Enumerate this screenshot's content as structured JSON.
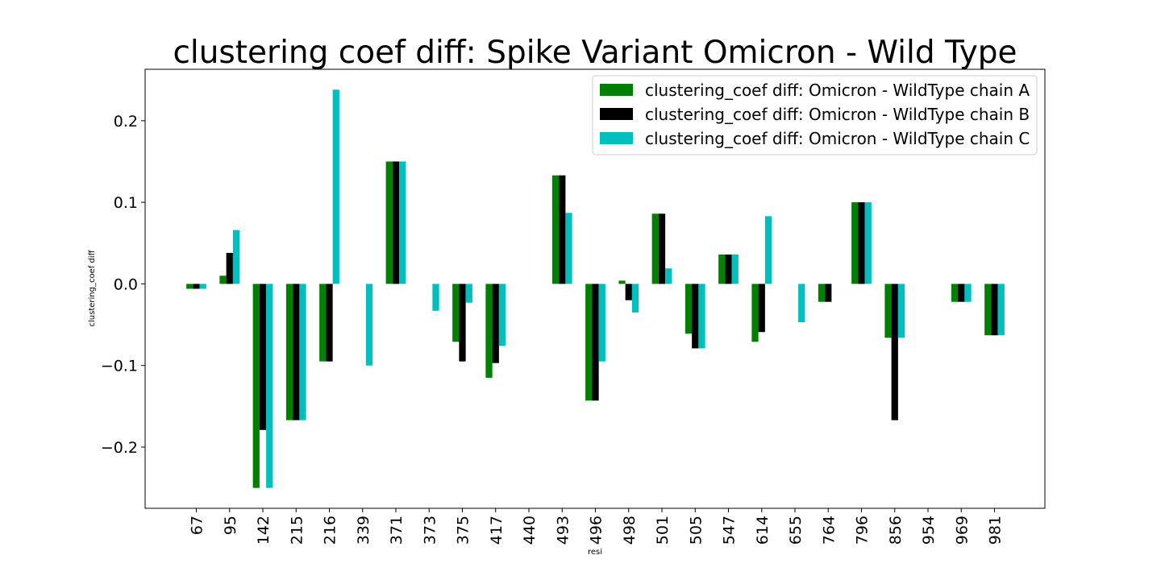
{
  "chart_data": {
    "type": "bar",
    "title": "clustering coef diff: Spike Variant Omicron - Wild Type",
    "xlabel": "resi",
    "ylabel": "clustering_coef diff",
    "categories": [
      "67",
      "95",
      "142",
      "215",
      "216",
      "339",
      "371",
      "373",
      "375",
      "417",
      "440",
      "493",
      "496",
      "498",
      "501",
      "505",
      "547",
      "614",
      "655",
      "764",
      "796",
      "856",
      "954",
      "969",
      "981"
    ],
    "ylim": [
      -0.275,
      0.263
    ],
    "yticks": [
      "0.2",
      "0.1",
      "0.0",
      "−0.1",
      "−0.2"
    ],
    "ytick_values": [
      0.2,
      0.1,
      0.0,
      -0.1,
      -0.2
    ],
    "grid": false,
    "legend_position": "top-right",
    "series": [
      {
        "name": "clustering_coef diff: Omicron - WildType chain A",
        "color": "#008000",
        "values": [
          -0.006,
          0.01,
          -0.25,
          -0.167,
          -0.095,
          0,
          0.15,
          0,
          -0.071,
          -0.115,
          0,
          0.133,
          -0.143,
          0.004,
          0.086,
          -0.061,
          0.036,
          -0.071,
          0,
          -0.022,
          0.1,
          -0.066,
          0,
          -0.022,
          -0.063
        ]
      },
      {
        "name": "clustering_coef diff: Omicron - WildType chain B",
        "color": "#000000",
        "values": [
          -0.006,
          0.038,
          -0.179,
          -0.167,
          -0.095,
          0,
          0.15,
          0,
          -0.095,
          -0.097,
          0,
          0.133,
          -0.143,
          -0.02,
          0.086,
          -0.079,
          0.036,
          -0.059,
          0,
          -0.022,
          0.1,
          -0.167,
          0,
          -0.022,
          -0.063
        ]
      },
      {
        "name": "clustering_coef diff: Omicron - WildType chain C",
        "color": "#00BFBF",
        "values": [
          -0.006,
          0.066,
          -0.25,
          -0.167,
          0.238,
          -0.1,
          0.15,
          -0.033,
          -0.023,
          -0.076,
          0,
          0.087,
          -0.095,
          -0.035,
          0.019,
          -0.079,
          0.036,
          0.083,
          -0.047,
          0,
          0.1,
          -0.066,
          0,
          -0.022,
          -0.063
        ]
      }
    ]
  }
}
